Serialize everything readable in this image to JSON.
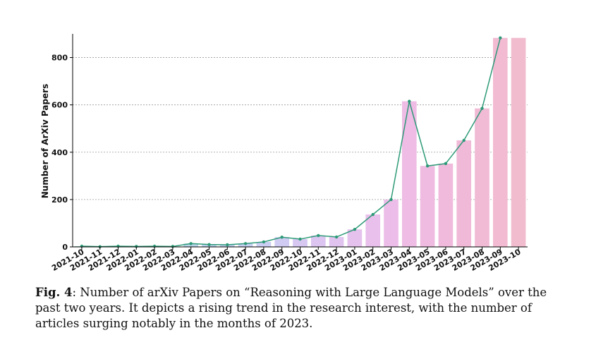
{
  "chart_data": {
    "type": "bar",
    "categories": [
      "2021-10",
      "2021-11",
      "2021-12",
      "2022-01",
      "2022-02",
      "2022-03",
      "2022-04",
      "2022-05",
      "2022-06",
      "2022-07",
      "2022-08",
      "2022-09",
      "2022-10",
      "2022-11",
      "2022-12",
      "2023-01",
      "2023-02",
      "2023-03",
      "2023-04",
      "2023-05",
      "2023-06",
      "2023-07",
      "2023-08",
      "2023-09",
      "2023-10"
    ],
    "values": [
      3,
      1,
      3,
      2,
      3,
      2,
      14,
      10,
      9,
      14,
      21,
      41,
      33,
      48,
      42,
      74,
      137,
      200,
      615,
      342,
      352,
      450,
      585,
      883,
      883
    ],
    "line_overlay": true,
    "ylabel": "Number of ArXiv Papers",
    "xlabel": "",
    "ylim": [
      0,
      900
    ],
    "yticks": [
      0,
      200,
      400,
      600,
      800
    ],
    "grid": "horizontal-dotted",
    "colors": {
      "line": "#2e9a78",
      "bar_gradient": [
        "#9fd3c1",
        "#aed4d6",
        "#bad2ee",
        "#cccdf2",
        "#e0c3f0",
        "#edbde8",
        "#f1b9d9",
        "#f2bccf"
      ]
    }
  },
  "caption": {
    "label": "Fig. 4",
    "text": ": Number of arXiv Papers on “Reasoning with Large Language Models” over the past two years. It depicts a rising trend in the research interest, with the number of articles surging notably in the months of 2023."
  }
}
